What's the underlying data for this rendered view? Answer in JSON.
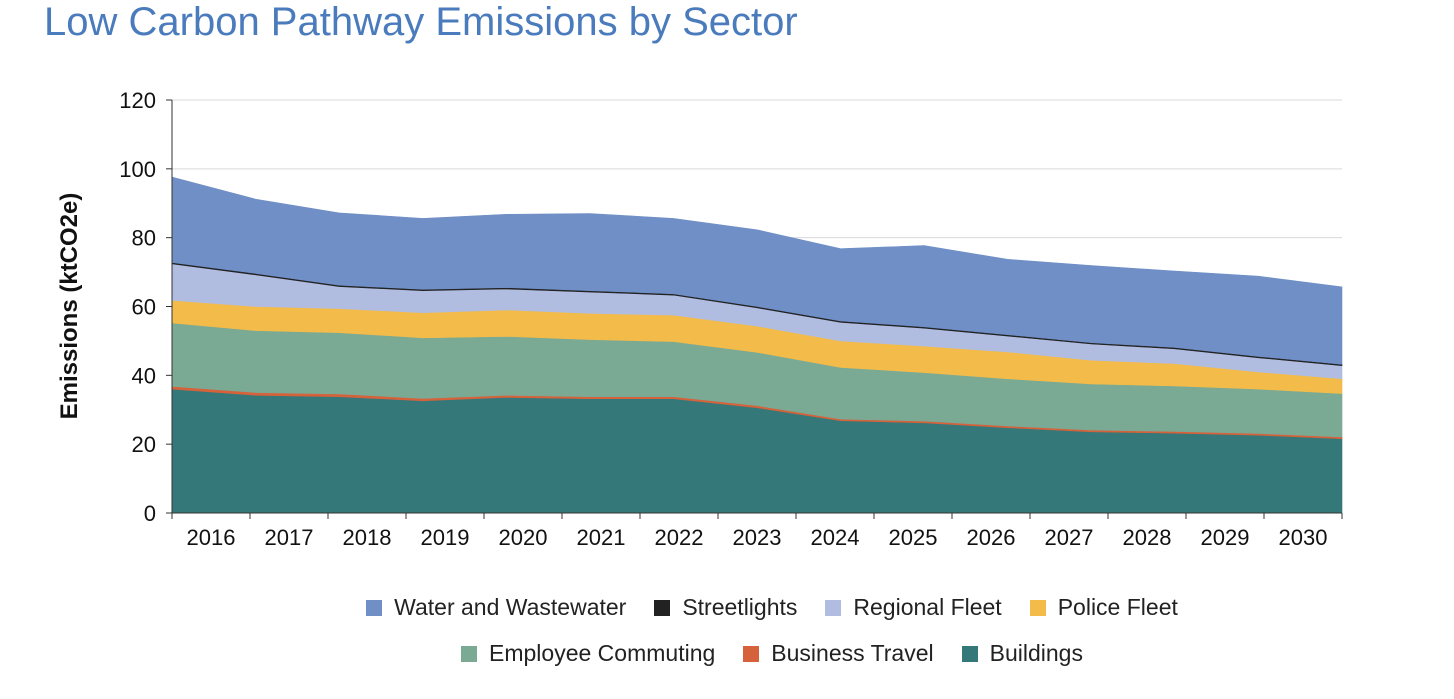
{
  "title": "Low Carbon Pathway Emissions by Sector",
  "chart_data": {
    "type": "area",
    "stacked": true,
    "title": "Low Carbon Pathway Emissions by Sector",
    "xlabel": "",
    "ylabel": "Emissions (ktCO2e)",
    "ylim": [
      0,
      120
    ],
    "yticks": [
      0,
      20,
      40,
      60,
      80,
      100,
      120
    ],
    "grid": "horizontal",
    "legend_position": "bottom",
    "categories": [
      "2016",
      "2017",
      "2018",
      "2019",
      "2020",
      "2021",
      "2022",
      "2023",
      "2024",
      "2025",
      "2026",
      "2027",
      "2028",
      "2029",
      "2030"
    ],
    "series": [
      {
        "name": "Buildings",
        "color": "#34787a",
        "values": [
          36.0,
          34.2,
          33.8,
          32.6,
          33.6,
          33.2,
          33.2,
          30.6,
          26.8,
          26.2,
          24.8,
          23.6,
          23.2,
          22.6,
          21.6
        ]
      },
      {
        "name": "Business Travel",
        "color": "#d5623a",
        "values": [
          0.8,
          0.8,
          0.8,
          0.7,
          0.6,
          0.6,
          0.6,
          0.6,
          0.5,
          0.5,
          0.5,
          0.5,
          0.5,
          0.5,
          0.5
        ]
      },
      {
        "name": "Employee Commuting",
        "color": "#7aa994",
        "values": [
          18.4,
          18.0,
          17.8,
          17.6,
          17.1,
          16.6,
          16.0,
          15.5,
          15.0,
          14.1,
          13.7,
          13.4,
          13.2,
          12.9,
          12.6
        ]
      },
      {
        "name": "Police Fleet",
        "color": "#f2bb4a",
        "values": [
          6.6,
          7.0,
          7.0,
          7.3,
          7.7,
          7.6,
          7.7,
          7.6,
          7.7,
          7.7,
          7.8,
          6.9,
          6.5,
          5.0,
          4.3
        ]
      },
      {
        "name": "Regional Fleet",
        "color": "#b0bde1",
        "values": [
          10.6,
          9.2,
          6.4,
          6.4,
          6.1,
          6.2,
          5.8,
          5.3,
          5.4,
          5.2,
          4.6,
          4.7,
          4.3,
          4.1,
          3.8
        ]
      },
      {
        "name": "Streetlights",
        "color": "#222222",
        "values": [
          0.4,
          0.4,
          0.4,
          0.4,
          0.4,
          0.4,
          0.4,
          0.4,
          0.4,
          0.4,
          0.4,
          0.4,
          0.4,
          0.4,
          0.4
        ]
      },
      {
        "name": "Water and Wastewater",
        "color": "#6f8fc6",
        "values": [
          24.8,
          21.6,
          21.0,
          20.6,
          21.3,
          22.4,
          21.9,
          22.3,
          21.0,
          23.6,
          21.9,
          22.4,
          22.2,
          23.3,
          22.5
        ]
      }
    ]
  },
  "legend": {
    "row1": [
      {
        "label": "Water and Wastewater",
        "color": "#6f8fc6"
      },
      {
        "label": "Streetlights",
        "color": "#222222"
      },
      {
        "label": "Regional Fleet",
        "color": "#b0bde1"
      },
      {
        "label": "Police Fleet",
        "color": "#f2bb4a"
      }
    ],
    "row2": [
      {
        "label": "Employee Commuting",
        "color": "#7aa994"
      },
      {
        "label": "Business Travel",
        "color": "#d5623a"
      },
      {
        "label": "Buildings",
        "color": "#34787a"
      }
    ]
  }
}
